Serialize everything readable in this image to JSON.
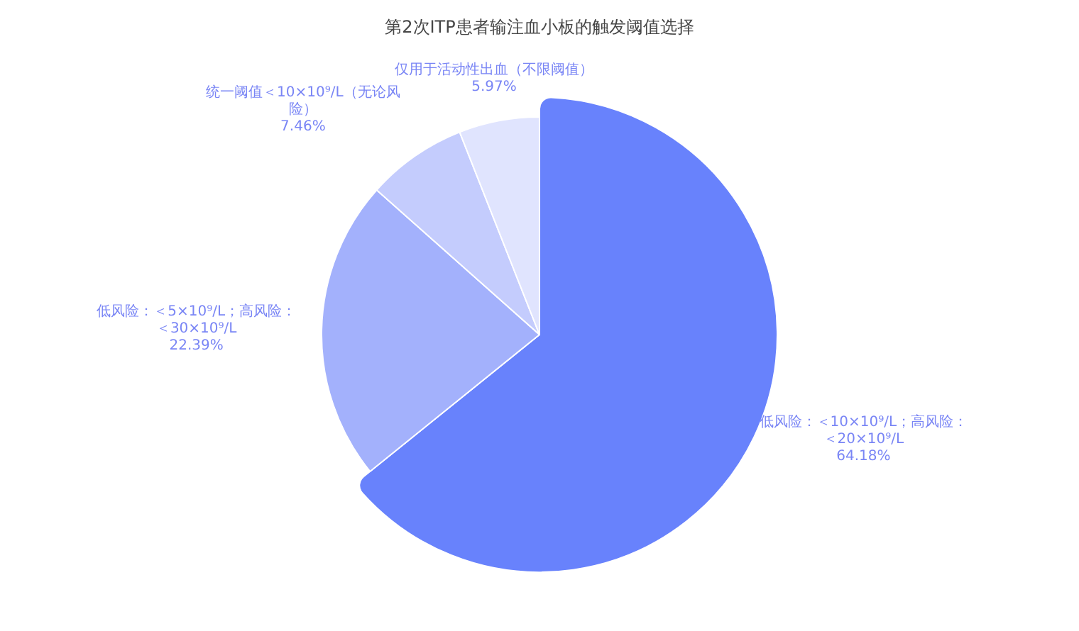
{
  "chart_data": {
    "type": "pie",
    "title": "第2次ITP患者输注血小板的触发阈值选择",
    "categories": [
      "低风险：＜10×10⁹/L；高风险：＜20×10⁹/L",
      "低风险：＜5×10⁹/L；高风险：＜30×10⁹/L",
      "统一阈值＜10×10⁹/L（无论风险）",
      "仅用于活动性出血（不限阈值）"
    ],
    "values": [
      64.18,
      22.39,
      7.46,
      5.97
    ],
    "value_labels": [
      "64.18%",
      "22.39%",
      "7.46%",
      "5.97%"
    ],
    "colors": [
      "#6882fc",
      "#a3b1fc",
      "#c4ccfd",
      "#e0e4fe"
    ],
    "legend": false
  }
}
